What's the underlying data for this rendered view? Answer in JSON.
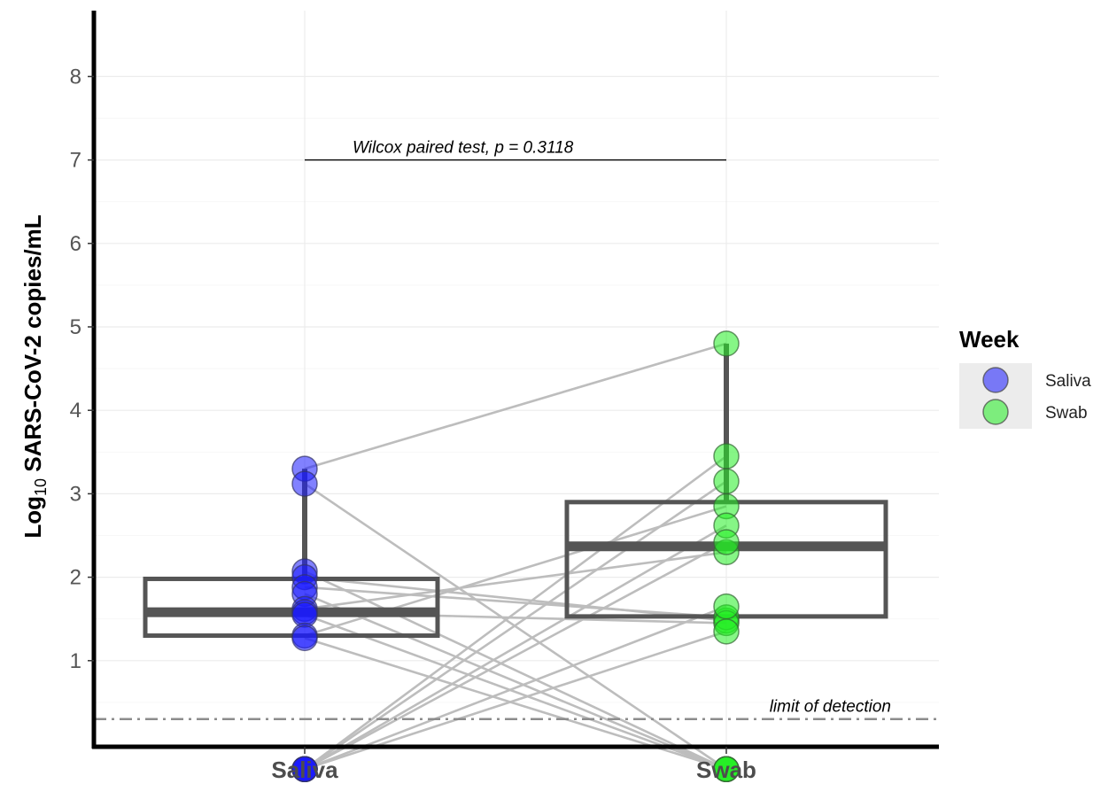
{
  "chart_data": {
    "type": "box",
    "ylabel": {
      "main": "Log",
      "sub": "10",
      "rest": " SARS-CoV-2 copies/mL"
    },
    "categories": [
      "Saliva",
      "Swab"
    ],
    "y_ticks": [
      "1",
      "2",
      "3",
      "4",
      "5",
      "6",
      "7",
      "8"
    ],
    "ylim": [
      -0.3,
      8.35
    ],
    "grid": true,
    "legend": {
      "title": "Week",
      "position": "right",
      "entries": [
        {
          "label": "Saliva",
          "color": "#1a1aff"
        },
        {
          "label": "Swab",
          "color": "#22ee22"
        }
      ]
    },
    "boxes": [
      {
        "category": "Saliva",
        "q1": 1.3,
        "median": 1.58,
        "q3": 1.98,
        "whisker_low": 1.3,
        "whisker_high": 3.3
      },
      {
        "category": "Swab",
        "q1": 1.53,
        "median": 2.37,
        "q3": 2.9,
        "whisker_low": 1.53,
        "whisker_high": 4.8
      }
    ],
    "points": [
      {
        "saliva": 3.3,
        "swab": 4.8
      },
      {
        "saliva": 3.12,
        "swab": -0.3
      },
      {
        "saliva": 2.07,
        "swab": -0.3
      },
      {
        "saliva": 2.0,
        "swab": 1.48
      },
      {
        "saliva": 1.88,
        "swab": 1.52
      },
      {
        "saliva": 1.8,
        "swab": -0.3
      },
      {
        "saliva": 1.62,
        "swab": 2.3
      },
      {
        "saliva": 1.58,
        "swab": 1.45
      },
      {
        "saliva": 1.55,
        "swab": -0.3
      },
      {
        "saliva": 1.3,
        "swab": 2.85
      },
      {
        "saliva": 1.27,
        "swab": -0.3
      },
      {
        "saliva": -0.3,
        "swab": 3.45
      },
      {
        "saliva": -0.3,
        "swab": 3.15
      },
      {
        "saliva": -0.3,
        "swab": 2.62
      },
      {
        "saliva": -0.3,
        "swab": 2.42
      },
      {
        "saliva": -0.3,
        "swab": 1.65
      },
      {
        "saliva": -0.3,
        "swab": 1.35
      }
    ],
    "reference_line": {
      "y": 0.3,
      "label": "limit of detection"
    },
    "test_annotation": {
      "label": "Wilcox paired test, p = 0.3118",
      "y": 7.0
    }
  }
}
